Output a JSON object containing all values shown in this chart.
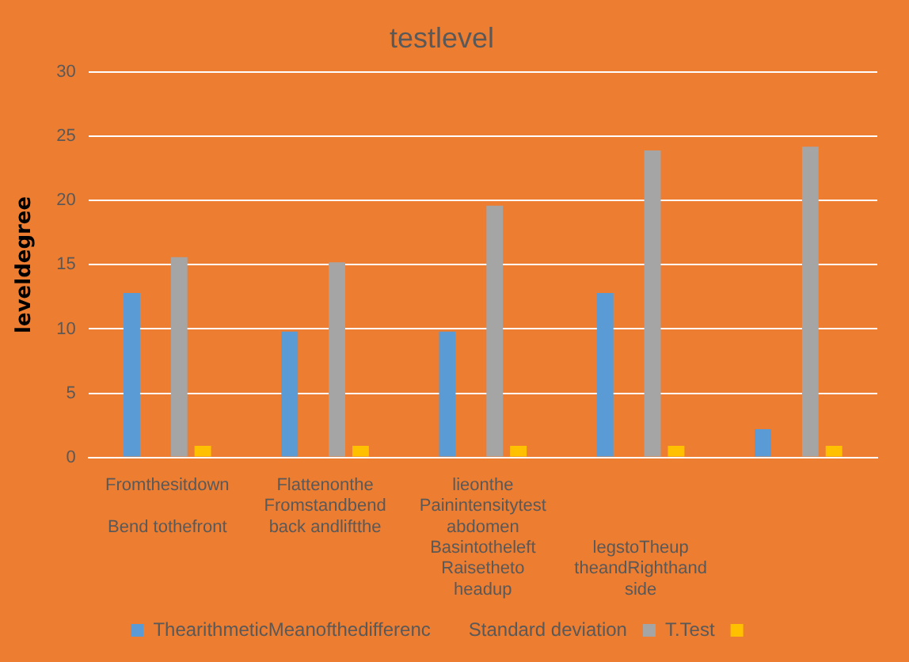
{
  "chart_data": {
    "type": "bar",
    "title": "testlevel",
    "ylabel": "leveldegree",
    "categories": [
      "Fromthesitdown\n \nBend tothefront",
      "Flattenonthe\nFromstandbend\nback andliftthe",
      "lieonthe\nPainintensitytest\nabdomen\nBasintotheleft\nRaisetheto\nheadup",
      "\n\n\nlegstoTheup\ntheandRighthand\nside",
      null
    ],
    "series": [
      {
        "name": "ThearithmeticMeanofthedifferenc",
        "color": "#5b9bd5",
        "values": [
          12.8,
          9.8,
          9.8,
          12.8,
          2.2
        ]
      },
      {
        "name": "Standard deviation",
        "values": [
          null,
          null,
          null,
          null,
          null
        ]
      },
      {
        "name": "T.Test",
        "color": "#a5a5a5",
        "values": [
          15.6,
          15.2,
          19.6,
          23.9,
          24.2
        ]
      },
      {
        "color": "#ffc000",
        "values": [
          0.9,
          0.9,
          0.9,
          0.9,
          0.9
        ]
      }
    ],
    "ylim": [
      0,
      30
    ],
    "yticks": [
      0,
      5,
      10,
      15,
      20,
      25,
      30
    ],
    "grid": "y",
    "legend": "bottom"
  }
}
